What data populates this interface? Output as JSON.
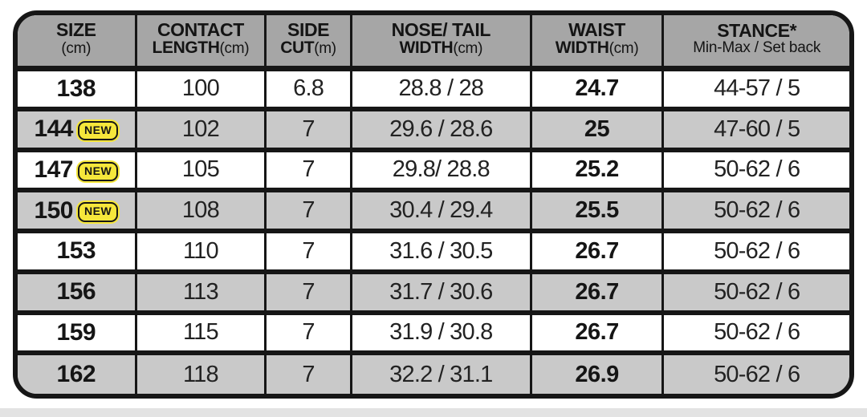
{
  "colors": {
    "border": "#161616",
    "header_bg": "#a6a6a6",
    "row_shade_bg": "#c9c9c9",
    "row_plain_bg": "#ffffff",
    "badge_bg": "#f6e73b",
    "badge_text": "#151515",
    "bottom_strip": "#e3e3e3"
  },
  "table": {
    "new_badge_label": "NEW",
    "columns": [
      {
        "id": "size",
        "line1": "SIZE",
        "line2": "",
        "unit": "(cm)"
      },
      {
        "id": "contact_length",
        "line1": "CONTACT",
        "line2": "LENGTH",
        "unit": "(cm)"
      },
      {
        "id": "side_cut",
        "line1": "SIDE",
        "line2": "CUT",
        "unit": "(m)"
      },
      {
        "id": "nose_tail",
        "line1": "NOSE/ TAIL",
        "line2": "WIDTH",
        "unit": "(cm)"
      },
      {
        "id": "waist",
        "line1": "WAIST",
        "line2": "WIDTH",
        "unit": "(cm)"
      },
      {
        "id": "stance",
        "line1": "STANCE*",
        "line2": "Min-Max / Set back",
        "unit": "",
        "sub_regular": true
      }
    ],
    "rows": [
      {
        "size": "138",
        "is_new": false,
        "shade": false,
        "contact_length": "100",
        "side_cut": "6.8",
        "nose_tail": "28.8 / 28",
        "waist": "24.7",
        "stance": "44-57 / 5"
      },
      {
        "size": "144",
        "is_new": true,
        "shade": true,
        "contact_length": "102",
        "side_cut": "7",
        "nose_tail": "29.6 / 28.6",
        "waist": "25",
        "stance": "47-60 / 5"
      },
      {
        "size": "147",
        "is_new": true,
        "shade": false,
        "contact_length": "105",
        "side_cut": "7",
        "nose_tail": "29.8/ 28.8",
        "waist": "25.2",
        "stance": "50-62 / 6"
      },
      {
        "size": "150",
        "is_new": true,
        "shade": true,
        "contact_length": "108",
        "side_cut": "7",
        "nose_tail": "30.4 / 29.4",
        "waist": "25.5",
        "stance": "50-62 / 6"
      },
      {
        "size": "153",
        "is_new": false,
        "shade": false,
        "contact_length": "110",
        "side_cut": "7",
        "nose_tail": "31.6 / 30.5",
        "waist": "26.7",
        "stance": "50-62 / 6"
      },
      {
        "size": "156",
        "is_new": false,
        "shade": true,
        "contact_length": "113",
        "side_cut": "7",
        "nose_tail": "31.7 / 30.6",
        "waist": "26.7",
        "stance": "50-62 / 6"
      },
      {
        "size": "159",
        "is_new": false,
        "shade": false,
        "contact_length": "115",
        "side_cut": "7",
        "nose_tail": "31.9 / 30.8",
        "waist": "26.7",
        "stance": "50-62 / 6"
      },
      {
        "size": "162",
        "is_new": false,
        "shade": true,
        "contact_length": "118",
        "side_cut": "7",
        "nose_tail": "32.2 / 31.1",
        "waist": "26.9",
        "stance": "50-62 / 6"
      }
    ]
  },
  "chart_data": {
    "type": "table",
    "columns": [
      "SIZE (cm)",
      "CONTACT LENGTH (cm)",
      "SIDE CUT (m)",
      "NOSE/ TAIL WIDTH (cm)",
      "WAIST WIDTH (cm)",
      "STANCE* Min-Max / Set back"
    ],
    "rows": [
      [
        "138",
        "100",
        "6.8",
        "28.8 / 28",
        "24.7",
        "44-57 / 5"
      ],
      [
        "144 (NEW)",
        "102",
        "7",
        "29.6 / 28.6",
        "25",
        "47-60 / 5"
      ],
      [
        "147 (NEW)",
        "105",
        "7",
        "29.8/ 28.8",
        "25.2",
        "50-62 / 6"
      ],
      [
        "150 (NEW)",
        "108",
        "7",
        "30.4 / 29.4",
        "25.5",
        "50-62 / 6"
      ],
      [
        "153",
        "110",
        "7",
        "31.6 / 30.5",
        "26.7",
        "50-62 / 6"
      ],
      [
        "156",
        "113",
        "7",
        "31.7 / 30.6",
        "26.7",
        "50-62 / 6"
      ],
      [
        "159",
        "115",
        "7",
        "31.9 / 30.8",
        "26.7",
        "50-62 / 6"
      ],
      [
        "162",
        "118",
        "7",
        "32.2 / 31.1",
        "26.9",
        "50-62 / 6"
      ]
    ]
  }
}
